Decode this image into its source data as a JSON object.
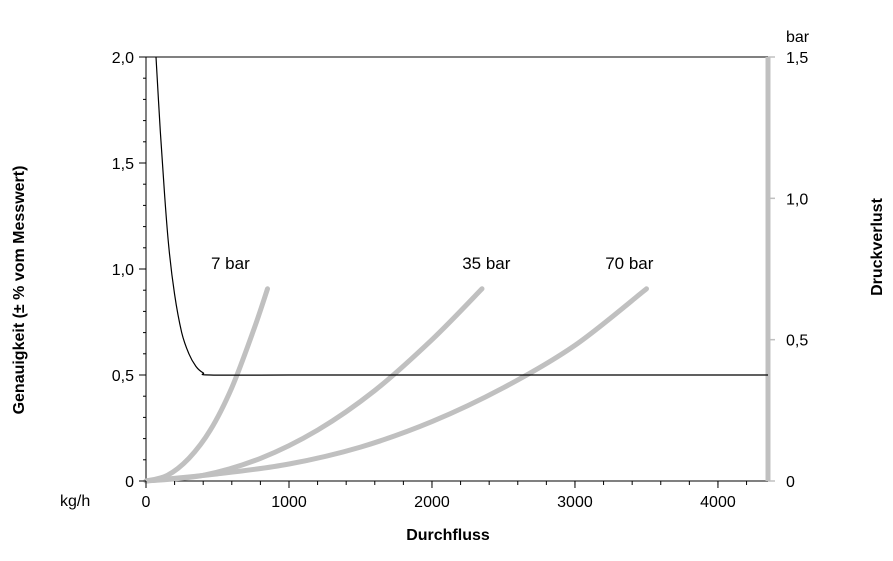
{
  "chart_data": {
    "type": "line",
    "xlabel": "Durchfluss",
    "x_unit": "kg/h",
    "ylabel_left": "Genauigkeit (± % vom Messwert)",
    "ylabel_right": "Druckverlust",
    "y_right_unit": "bar",
    "xlim": [
      0,
      4350
    ],
    "ylim_left": [
      0,
      2.0
    ],
    "ylim_right": [
      0,
      1.5
    ],
    "x_ticks": [
      0,
      1000,
      2000,
      3000,
      4000
    ],
    "x_tick_labels": [
      "0",
      "1000",
      "2000",
      "3000",
      "4000"
    ],
    "y_left_ticks": [
      0,
      0.5,
      1.0,
      1.5,
      2.0
    ],
    "y_left_tick_labels": [
      "0",
      "0,5",
      "1,0",
      "1,5",
      "2,0"
    ],
    "y_right_ticks": [
      0,
      0.5,
      1.0,
      1.5
    ],
    "y_right_tick_labels": [
      "0",
      "0,5",
      "1,0",
      "1,5"
    ],
    "grid": false,
    "accuracy_series": {
      "axis": "left",
      "x": [
        70,
        100,
        130,
        160,
        200,
        250,
        300,
        350,
        400,
        450,
        1000,
        2000,
        3000,
        4000,
        4350
      ],
      "y": [
        2.0,
        1.65,
        1.35,
        1.1,
        0.88,
        0.7,
        0.6,
        0.54,
        0.51,
        0.5,
        0.5,
        0.5,
        0.5,
        0.5,
        0.5
      ]
    },
    "series": [
      {
        "name": "7 bar",
        "axis": "right",
        "label": "7 bar",
        "label_x": 590,
        "label_y": 0.75,
        "x": [
          0,
          150,
          300,
          450,
          600,
          750,
          850
        ],
        "y": [
          0,
          0.02,
          0.08,
          0.18,
          0.33,
          0.53,
          0.68
        ]
      },
      {
        "name": "35 bar",
        "axis": "right",
        "label": "35 bar",
        "label_x": 2380,
        "label_y": 0.75,
        "x": [
          0,
          400,
          800,
          1200,
          1600,
          2000,
          2350
        ],
        "y": [
          0,
          0.02,
          0.08,
          0.18,
          0.32,
          0.5,
          0.68
        ]
      },
      {
        "name": "70 bar",
        "axis": "right",
        "label": "70 bar",
        "label_x": 3380,
        "label_y": 0.75,
        "x": [
          0,
          500,
          1000,
          1500,
          2000,
          2500,
          3000,
          3500
        ],
        "y": [
          0,
          0.025,
          0.06,
          0.12,
          0.21,
          0.33,
          0.48,
          0.68
        ]
      }
    ],
    "colors": {
      "accuracy": "#000000",
      "pressure": "#c0c0c0",
      "frame": "#000000"
    }
  }
}
